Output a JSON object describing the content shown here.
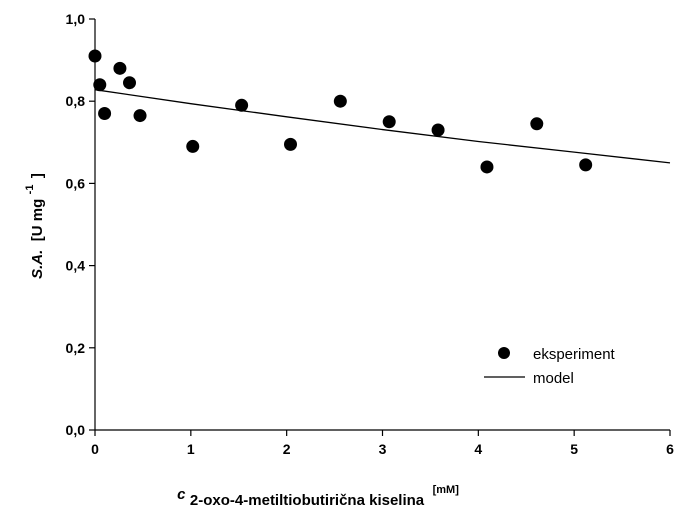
{
  "chart_data": {
    "type": "scatter",
    "x_axis": {
      "label_prefix": "c",
      "label_subscript": "2-oxo-4-metiltiobutirična kiselina",
      "label_unit": "[mM]",
      "range": [
        0,
        6
      ],
      "ticks": [
        0,
        1,
        2,
        3,
        4,
        5,
        6
      ],
      "tick_labels": [
        "0",
        "1",
        "2",
        "3",
        "4",
        "5",
        "6"
      ]
    },
    "y_axis": {
      "label_main": "S.A.",
      "label_unit_text": "[U mg",
      "label_exponent": "-1",
      "label_close": "]",
      "range": [
        0,
        1.0
      ],
      "ticks": [
        0,
        0.2,
        0.4,
        0.6,
        0.8,
        1.0
      ],
      "tick_labels": [
        "0,0",
        "0,2",
        "0,4",
        "0,6",
        "0,8",
        "1,0"
      ]
    },
    "grid": false,
    "legend_position": "bottom-right",
    "series": [
      {
        "name": "eksperiment",
        "kind": "points",
        "color": "#000000",
        "x": [
          0.0,
          0.05,
          0.1,
          0.26,
          0.36,
          0.47,
          1.02,
          1.53,
          2.04,
          2.56,
          3.07,
          3.58,
          4.09,
          4.61,
          5.12
        ],
        "y": [
          0.91,
          0.84,
          0.77,
          0.88,
          0.845,
          0.765,
          0.69,
          0.79,
          0.695,
          0.8,
          0.75,
          0.73,
          0.64,
          0.745,
          0.645
        ]
      },
      {
        "name": "model",
        "kind": "line",
        "color": "#000000",
        "x": [
          0.0,
          1.0,
          2.0,
          3.0,
          4.0,
          5.0,
          6.0
        ],
        "y": [
          0.828,
          0.794,
          0.762,
          0.731,
          0.702,
          0.676,
          0.65
        ]
      }
    ]
  }
}
